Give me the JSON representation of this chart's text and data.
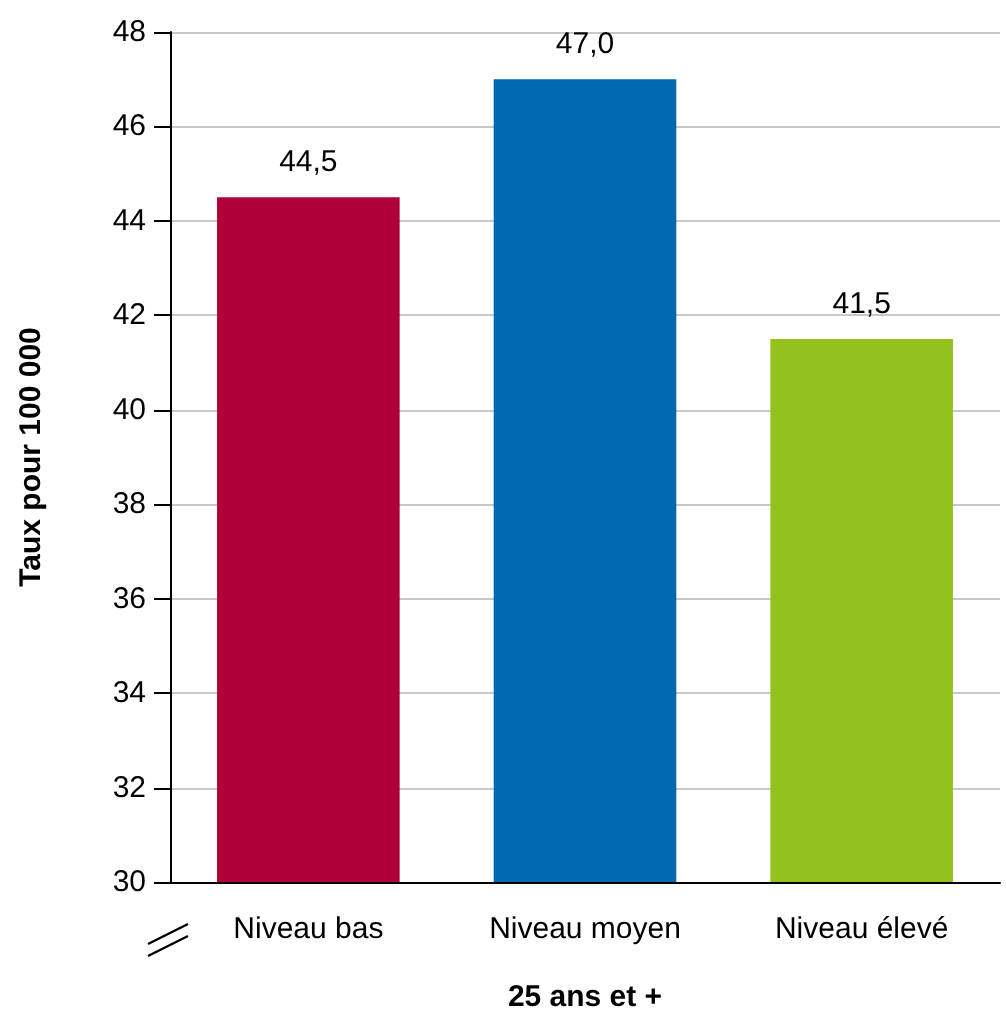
{
  "chart_data": {
    "type": "bar",
    "xlabel": "25 ans et +",
    "ylabel": "Taux pour 100 000",
    "categories": [
      "Niveau bas",
      "Niveau moyen",
      "Niveau élevé"
    ],
    "values": [
      44.5,
      47.0,
      41.5
    ],
    "colors": [
      "#b0003a",
      "#0067b1",
      "#95c11f"
    ],
    "value_labels": [
      "44,5",
      "47,0",
      "41,5"
    ],
    "ylim": [
      30,
      48
    ],
    "yticks": [
      30,
      32,
      34,
      36,
      38,
      40,
      42,
      44,
      46,
      48
    ],
    "grid": "y"
  }
}
